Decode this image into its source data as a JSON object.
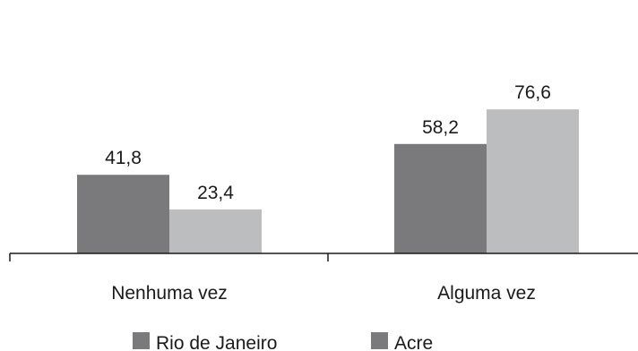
{
  "chart_data": {
    "type": "bar",
    "categories": [
      "Nenhuma vez",
      "Alguma vez"
    ],
    "series": [
      {
        "name": "Rio de Janeiro",
        "values": [
          41.8,
          58.2
        ],
        "value_labels": [
          "41,8",
          "58,2"
        ],
        "color": "#7a7a7c"
      },
      {
        "name": "Acre",
        "values": [
          23.4,
          76.6
        ],
        "value_labels": [
          "23,4",
          "76,6"
        ],
        "color": "#bcbdbf"
      }
    ],
    "legend_entries": [
      {
        "label": "Rio de Janeiro",
        "color": "#7a7a7c"
      },
      {
        "label": "Acre",
        "color": "#7a7a7c"
      }
    ],
    "title": "",
    "xlabel": "",
    "ylabel": "",
    "legend_position": "bottom",
    "grid": false,
    "y_axis_visible": false
  }
}
